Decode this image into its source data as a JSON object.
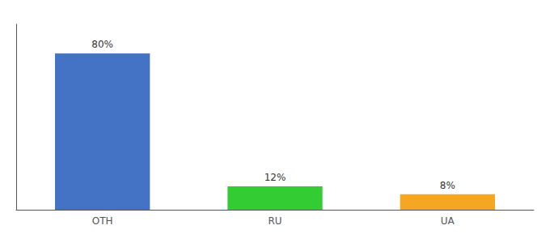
{
  "chart_data": {
    "type": "bar",
    "categories": [
      "OTH",
      "RU",
      "UA"
    ],
    "values": [
      80,
      12,
      8
    ],
    "value_labels": [
      "80%",
      "12%",
      "8%"
    ],
    "colors": [
      "#4472c4",
      "#33cc33",
      "#f5a623"
    ],
    "ylim": [
      0,
      95
    ],
    "data_labels": true,
    "tick_labels": "x",
    "grid": false
  }
}
